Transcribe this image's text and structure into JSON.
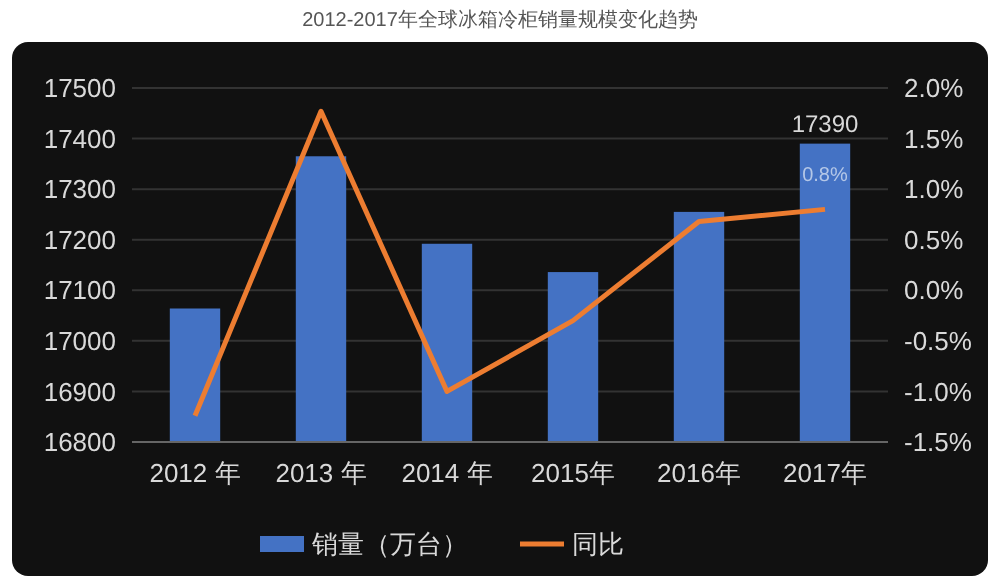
{
  "chart_data": {
    "type": "bar",
    "title": "2012-2017年全球冰箱冷柜销量规模变化趋势",
    "categories": [
      "2012 年",
      "2013 年",
      "2014 年",
      "2015年",
      "2016年",
      "2017年"
    ],
    "series": [
      {
        "name": "销量（万台）",
        "color": "#4472c4",
        "values": [
          17064,
          17365,
          17192,
          17136,
          17255,
          17390
        ],
        "value_labels": [
          null,
          null,
          null,
          null,
          null,
          "17390"
        ]
      },
      {
        "name": "同比",
        "type": "line",
        "axis": "y2",
        "color": "#ed7d31",
        "values": [
          -1.24,
          1.77,
          -1.0,
          -0.3,
          0.68,
          0.8
        ],
        "value_labels": [
          null,
          null,
          null,
          null,
          null,
          "0.8%"
        ]
      }
    ],
    "ylim": [
      16800,
      17500
    ],
    "yticks": [
      16800,
      16900,
      17000,
      17100,
      17200,
      17300,
      17400,
      17500
    ],
    "y2lim": [
      -1.5,
      2.0
    ],
    "y2ticks": [
      {
        "value": -1.5,
        "label": "-1.5%"
      },
      {
        "value": -1.0,
        "label": "-1.0%"
      },
      {
        "value": -0.5,
        "label": "-0.5%"
      },
      {
        "value": 0,
        "label": "0.0%"
      },
      {
        "value": 0.5,
        "label": "0.5%"
      },
      {
        "value": 1.0,
        "label": "1.0%"
      },
      {
        "value": 1.5,
        "label": "1.5%"
      },
      {
        "value": 2.0,
        "label": "2.0%"
      }
    ],
    "grid": "y",
    "legend": "bottom",
    "line_style": "solid",
    "marker": "none"
  }
}
